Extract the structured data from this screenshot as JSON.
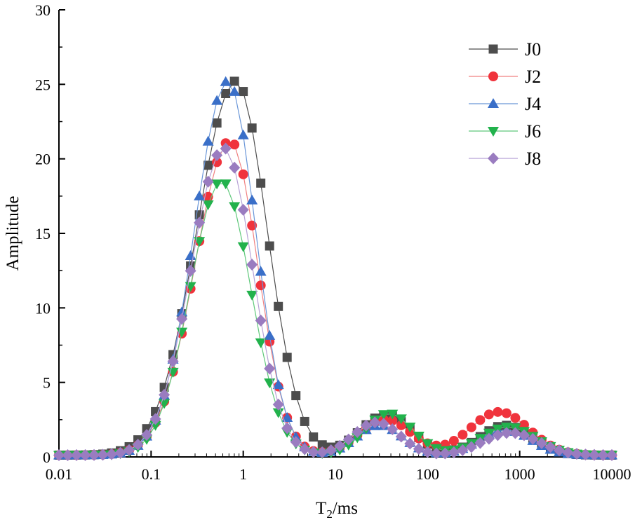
{
  "chart_data": {
    "type": "line",
    "x_scale": "log",
    "xlabel_main": "T",
    "xlabel_sub": "2",
    "xlabel_unit": "/ms",
    "ylabel": "Amplitude",
    "xlim": [
      0.01,
      10000
    ],
    "ylim": [
      0,
      30
    ],
    "xticks": [
      0.01,
      0.1,
      1,
      10,
      100,
      1000,
      10000
    ],
    "xtick_labels": [
      "0.01",
      "0.1",
      "1",
      "10",
      "100",
      "1000",
      "10000"
    ],
    "yticks": [
      0,
      5,
      10,
      15,
      20,
      25,
      30
    ],
    "ytick_labels": [
      "0",
      "5",
      "10",
      "15",
      "20",
      "25",
      "30"
    ],
    "grid": false,
    "legend_position": "top-right",
    "series": [
      {
        "name": "J0",
        "marker": "square",
        "color": "#4d4d4d",
        "line_color": "#4d4d4d",
        "peaks": [
          {
            "center": 0.83,
            "height": 25.1,
            "sigma_left": 0.42,
            "sigma_right": 0.34
          },
          {
            "center": 35,
            "height": 2.7,
            "sigma": 0.28
          },
          {
            "center": 700,
            "height": 2.0,
            "sigma": 0.28
          }
        ]
      },
      {
        "name": "J2",
        "marker": "circle",
        "color": "#f0333c",
        "line_color": "#f08080",
        "peaks": [
          {
            "center": 0.72,
            "height": 21.1,
            "sigma_left": 0.38,
            "sigma_right": 0.3
          },
          {
            "center": 35,
            "height": 2.4,
            "sigma": 0.28
          },
          {
            "center": 600,
            "height": 2.9,
            "sigma": 0.32
          }
        ]
      },
      {
        "name": "J4",
        "marker": "triangle-up",
        "color": "#3a6fc8",
        "line_color": "#6a96d8",
        "peaks": [
          {
            "center": 0.68,
            "height": 25.1,
            "sigma_left": 0.36,
            "sigma_right": 0.3
          },
          {
            "center": 30,
            "height": 2.0,
            "sigma": 0.25
          },
          {
            "center": 700,
            "height": 1.7,
            "sigma": 0.28
          }
        ]
      },
      {
        "name": "J6",
        "marker": "triangle-down",
        "color": "#22b24c",
        "line_color": "#5fc87a",
        "peaks": [
          {
            "center": 0.58,
            "height": 18.4,
            "sigma_left": 0.34,
            "sigma_right": 0.32
          },
          {
            "center": 38,
            "height": 2.8,
            "sigma": 0.26
          },
          {
            "center": 750,
            "height": 1.9,
            "sigma": 0.3
          }
        ]
      },
      {
        "name": "J8",
        "marker": "diamond",
        "color": "#9a7cc0",
        "line_color": "#b7a2d6",
        "peaks": [
          {
            "center": 0.62,
            "height": 20.6,
            "sigma_left": 0.36,
            "sigma_right": 0.31
          },
          {
            "center": 28,
            "height": 2.2,
            "sigma": 0.25
          },
          {
            "center": 800,
            "height": 1.5,
            "sigma": 0.3
          }
        ]
      }
    ]
  }
}
